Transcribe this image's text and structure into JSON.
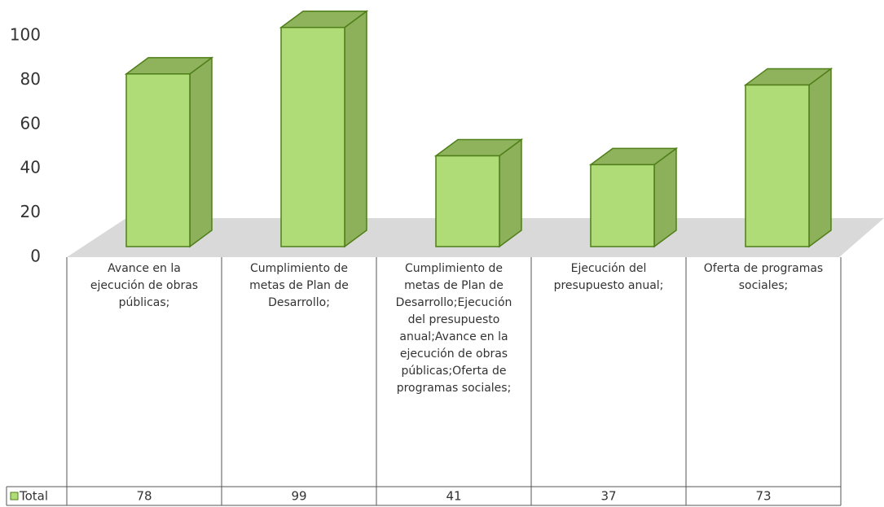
{
  "chart_data": {
    "type": "bar",
    "categories": [
      "Avance en la ejecución de obras públicas;",
      "Cumplimiento de metas de Plan de Desarrollo;",
      "Cumplimiento de metas de Plan de Desarrollo;Ejecución del presupuesto anual;Avance en la ejecución de obras públicas;Oferta de programas sociales;",
      "Ejecución del presupuesto anual;",
      "Oferta de programas sociales;"
    ],
    "series": [
      {
        "name": "Total",
        "color": "#b0dc78",
        "values": [
          78,
          99,
          41,
          37,
          73
        ]
      }
    ],
    "ylim": [
      0,
      100
    ],
    "yticks": [
      0,
      20,
      40,
      60,
      80,
      100
    ]
  }
}
